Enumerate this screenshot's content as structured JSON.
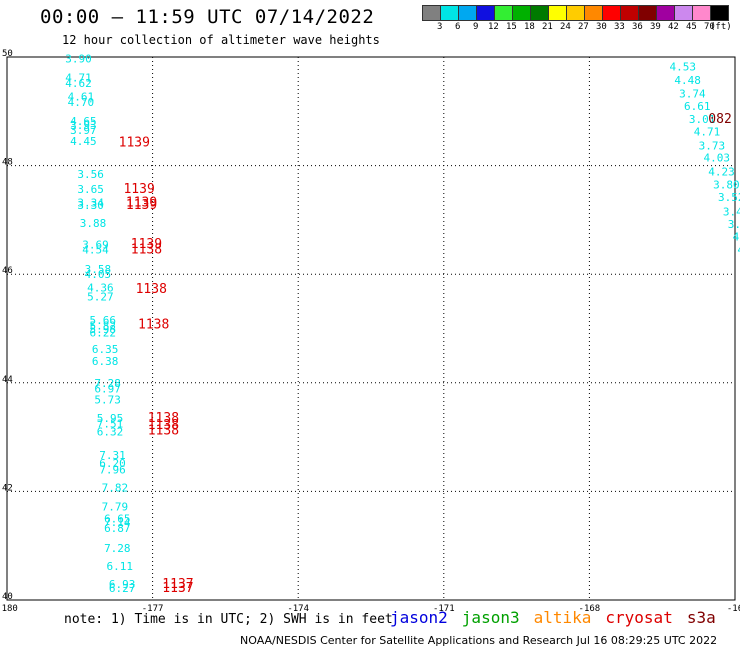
{
  "header": {
    "title": "00:00 — 11:59 UTC 07/14/2022",
    "subtitle": "12 hour collection of altimeter wave heights"
  },
  "legend": {
    "unit": "(ft)",
    "bins": [
      {
        "label": "3",
        "color": "#808080"
      },
      {
        "label": "6",
        "color": "#00e5e5"
      },
      {
        "label": "9",
        "color": "#00a8f0"
      },
      {
        "label": "12",
        "color": "#1010e0"
      },
      {
        "label": "15",
        "color": "#33ee33"
      },
      {
        "label": "18",
        "color": "#00b000"
      },
      {
        "label": "21",
        "color": "#007a00"
      },
      {
        "label": "24",
        "color": "#ffff00"
      },
      {
        "label": "27",
        "color": "#ffcc00"
      },
      {
        "label": "30",
        "color": "#ff8800"
      },
      {
        "label": "33",
        "color": "#ff0000"
      },
      {
        "label": "36",
        "color": "#c00000"
      },
      {
        "label": "39",
        "color": "#800000"
      },
      {
        "label": "42",
        "color": "#a000a0"
      },
      {
        "label": "45",
        "color": "#cc88ee"
      },
      {
        "label": "70",
        "color": "#ff88cc"
      },
      {
        "label": "",
        "color": "#000000"
      }
    ]
  },
  "footer": {
    "note": "note:  1) Time is in UTC;  2) SWH is in feet",
    "missions": [
      {
        "name": "jason2",
        "color": "#0000dd"
      },
      {
        "name": "jason3",
        "color": "#00a000"
      },
      {
        "name": "altika",
        "color": "#ff8800"
      },
      {
        "name": "cryosat",
        "color": "#dd0000"
      },
      {
        "name": "s3a",
        "color": "#800000"
      }
    ],
    "credit": "NOAA/NESDIS Center for Satellite Applications and Research    Jul 16 08:29:25 UTC 2022"
  },
  "chart_data": {
    "type": "scatter",
    "title": "00:00 — 11:59 UTC 07/14/2022",
    "xlim": [
      -180,
      -165
    ],
    "ylim": [
      40,
      50
    ],
    "x_ticks": [
      "-180",
      "-177",
      "-174",
      "-171",
      "-168",
      "-16"
    ],
    "y_ticks": [
      "50",
      "48",
      "46",
      "44",
      "42",
      "40"
    ],
    "grid": true,
    "swh_points": [
      {
        "lon": -178.8,
        "lat": 49.9,
        "label": "3.90",
        "color": "#00e5e5"
      },
      {
        "lon": -178.8,
        "lat": 49.55,
        "label": "4.71",
        "color": "#00e5e5"
      },
      {
        "lon": -178.8,
        "lat": 49.45,
        "label": "4.62",
        "color": "#00e5e5"
      },
      {
        "lon": -178.75,
        "lat": 49.2,
        "label": "4.61",
        "color": "#00e5e5"
      },
      {
        "lon": -178.75,
        "lat": 49.1,
        "label": "4.70",
        "color": "#00e5e5"
      },
      {
        "lon": -178.7,
        "lat": 48.75,
        "label": "4.65",
        "color": "#00e5e5"
      },
      {
        "lon": -178.7,
        "lat": 48.67,
        "label": "3.93",
        "color": "#00e5e5"
      },
      {
        "lon": -178.7,
        "lat": 48.58,
        "label": "3.97",
        "color": "#00e5e5"
      },
      {
        "lon": -178.7,
        "lat": 48.38,
        "label": "4.45",
        "color": "#00e5e5"
      },
      {
        "lon": -178.55,
        "lat": 47.77,
        "label": "3.56",
        "color": "#00e5e5"
      },
      {
        "lon": -178.55,
        "lat": 47.5,
        "label": "3.65",
        "color": "#00e5e5"
      },
      {
        "lon": -178.55,
        "lat": 47.25,
        "label": "3.34",
        "color": "#00e5e5"
      },
      {
        "lon": -178.55,
        "lat": 47.2,
        "label": "3.30",
        "color": "#00e5e5"
      },
      {
        "lon": -178.5,
        "lat": 46.87,
        "label": "3.88",
        "color": "#00e5e5"
      },
      {
        "lon": -178.45,
        "lat": 46.47,
        "label": "3.69",
        "color": "#00e5e5"
      },
      {
        "lon": -178.45,
        "lat": 46.38,
        "label": "4.54",
        "color": "#00e5e5"
      },
      {
        "lon": -178.4,
        "lat": 46.02,
        "label": "3.58",
        "color": "#00e5e5"
      },
      {
        "lon": -178.4,
        "lat": 45.93,
        "label": "4.05",
        "color": "#00e5e5"
      },
      {
        "lon": -178.35,
        "lat": 45.68,
        "label": "4.36",
        "color": "#00e5e5"
      },
      {
        "lon": -178.35,
        "lat": 45.52,
        "label": "5.27",
        "color": "#00e5e5"
      },
      {
        "lon": -178.3,
        "lat": 45.08,
        "label": "5.66",
        "color": "#00e5e5"
      },
      {
        "lon": -178.3,
        "lat": 44.98,
        "label": "5.82",
        "color": "#00e5e5"
      },
      {
        "lon": -178.3,
        "lat": 44.92,
        "label": "5.98",
        "color": "#00e5e5"
      },
      {
        "lon": -178.3,
        "lat": 44.85,
        "label": "6.22",
        "color": "#00e5e5"
      },
      {
        "lon": -178.25,
        "lat": 44.55,
        "label": "6.35",
        "color": "#00e5e5"
      },
      {
        "lon": -178.25,
        "lat": 44.33,
        "label": "6.38",
        "color": "#00e5e5"
      },
      {
        "lon": -178.2,
        "lat": 43.92,
        "label": "7.28",
        "color": "#00e5e5"
      },
      {
        "lon": -178.2,
        "lat": 43.82,
        "label": "6.97",
        "color": "#00e5e5"
      },
      {
        "lon": -178.2,
        "lat": 43.62,
        "label": "5.73",
        "color": "#00e5e5"
      },
      {
        "lon": -178.15,
        "lat": 43.28,
        "label": "5.95",
        "color": "#00e5e5"
      },
      {
        "lon": -178.15,
        "lat": 43.18,
        "label": "7.51",
        "color": "#00e5e5"
      },
      {
        "lon": -178.15,
        "lat": 43.03,
        "label": "6.32",
        "color": "#00e5e5"
      },
      {
        "lon": -178.1,
        "lat": 42.6,
        "label": "7.31",
        "color": "#00e5e5"
      },
      {
        "lon": -178.1,
        "lat": 42.45,
        "label": "6.20",
        "color": "#00e5e5"
      },
      {
        "lon": -178.1,
        "lat": 42.33,
        "label": "7.96",
        "color": "#00e5e5"
      },
      {
        "lon": -178.05,
        "lat": 42.0,
        "label": "7.82",
        "color": "#00e5e5"
      },
      {
        "lon": -178.05,
        "lat": 41.65,
        "label": "7.79",
        "color": "#00e5e5"
      },
      {
        "lon": -178.0,
        "lat": 41.43,
        "label": "6.65",
        "color": "#00e5e5"
      },
      {
        "lon": -178.0,
        "lat": 41.36,
        "label": "7.14",
        "color": "#00e5e5"
      },
      {
        "lon": -178.0,
        "lat": 41.25,
        "label": "6.87",
        "color": "#00e5e5"
      },
      {
        "lon": -178.0,
        "lat": 40.88,
        "label": "7.28",
        "color": "#00e5e5"
      },
      {
        "lon": -177.95,
        "lat": 40.55,
        "label": "6.11",
        "color": "#00e5e5"
      },
      {
        "lon": -177.9,
        "lat": 40.22,
        "label": "6.93",
        "color": "#00e5e5"
      },
      {
        "lon": -177.9,
        "lat": 40.15,
        "label": "6.27",
        "color": "#00e5e5"
      },
      {
        "lon": -166.35,
        "lat": 49.75,
        "label": "4.53",
        "color": "#00e5e5"
      },
      {
        "lon": -166.25,
        "lat": 49.5,
        "label": "4.48",
        "color": "#00e5e5"
      },
      {
        "lon": -166.15,
        "lat": 49.25,
        "label": "3.74",
        "color": "#00e5e5"
      },
      {
        "lon": -166.05,
        "lat": 49.02,
        "label": "6.61",
        "color": "#00e5e5"
      },
      {
        "lon": -165.95,
        "lat": 48.78,
        "label": "3.01",
        "color": "#00e5e5"
      },
      {
        "lon": -165.85,
        "lat": 48.55,
        "label": "4.71",
        "color": "#00e5e5"
      },
      {
        "lon": -165.75,
        "lat": 48.3,
        "label": "3.73",
        "color": "#00e5e5"
      },
      {
        "lon": -165.65,
        "lat": 48.08,
        "label": "4.03",
        "color": "#00e5e5"
      },
      {
        "lon": -165.55,
        "lat": 47.82,
        "label": "4.23",
        "color": "#00e5e5"
      },
      {
        "lon": -165.45,
        "lat": 47.58,
        "label": "3.80",
        "color": "#00e5e5"
      },
      {
        "lon": -165.35,
        "lat": 47.35,
        "label": "3.52",
        "color": "#00e5e5"
      },
      {
        "lon": -165.25,
        "lat": 47.08,
        "label": "3.44",
        "color": "#00e5e5"
      },
      {
        "lon": -165.15,
        "lat": 46.85,
        "label": "3.67",
        "color": "#00e5e5"
      },
      {
        "lon": -165.05,
        "lat": 46.62,
        "label": "4.2",
        "color": "#00e5e5"
      },
      {
        "lon": -164.95,
        "lat": 46.38,
        "label": "4.",
        "color": "#00e5e5"
      },
      {
        "lon": -164.85,
        "lat": 46.15,
        "label": "4",
        "color": "#00e5e5"
      }
    ],
    "time_points": [
      {
        "lon": -177.7,
        "lat": 48.35,
        "label": "1139",
        "color": "#dd0000"
      },
      {
        "lon": -177.6,
        "lat": 47.5,
        "label": "1139",
        "color": "#dd0000"
      },
      {
        "lon": -177.55,
        "lat": 47.25,
        "label": "1139",
        "color": "#dd0000"
      },
      {
        "lon": -177.55,
        "lat": 47.2,
        "label": "1139",
        "color": "#dd0000"
      },
      {
        "lon": -177.45,
        "lat": 46.48,
        "label": "1139",
        "color": "#dd0000"
      },
      {
        "lon": -177.45,
        "lat": 46.38,
        "label": "1138",
        "color": "#dd0000"
      },
      {
        "lon": -177.35,
        "lat": 45.65,
        "label": "1138",
        "color": "#dd0000"
      },
      {
        "lon": -177.3,
        "lat": 45.0,
        "label": "1138",
        "color": "#dd0000"
      },
      {
        "lon": -177.1,
        "lat": 43.28,
        "label": "1138",
        "color": "#dd0000"
      },
      {
        "lon": -177.1,
        "lat": 43.15,
        "label": "1138",
        "color": "#dd0000"
      },
      {
        "lon": -177.1,
        "lat": 43.05,
        "label": "1138",
        "color": "#dd0000"
      },
      {
        "lon": -176.8,
        "lat": 40.22,
        "label": "1137",
        "color": "#dd0000"
      },
      {
        "lon": -176.8,
        "lat": 40.15,
        "label": "1137",
        "color": "#dd0000"
      },
      {
        "lon": -165.55,
        "lat": 48.78,
        "label": "082",
        "color": "#800000"
      }
    ]
  }
}
